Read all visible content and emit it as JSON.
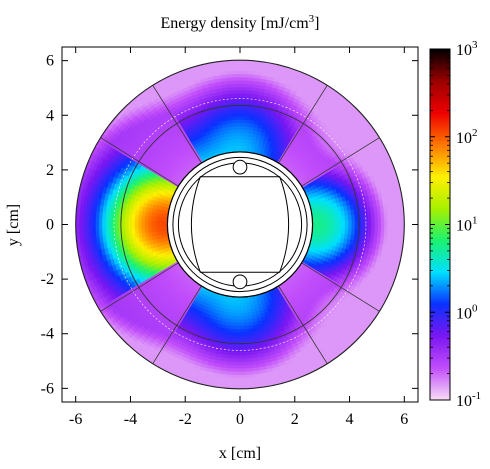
{
  "chart_data": {
    "type": "heatmap",
    "title": "Energy density [mJ/cm",
    "title_sup": "3",
    "title_end": "]",
    "xlabel": "x [cm]",
    "ylabel": "y [cm]",
    "xlim": [
      -6.5,
      6.5
    ],
    "ylim": [
      -6.5,
      6.5
    ],
    "xticks": [
      "-6",
      "-4",
      "-2",
      "0",
      "2",
      "4",
      "6"
    ],
    "yticks": [
      "6",
      "4",
      "2",
      "0",
      "-2",
      "-4",
      "-6"
    ],
    "xtick_values": [
      -6,
      -4,
      -2,
      0,
      2,
      4,
      6
    ],
    "ytick_values": [
      6,
      4,
      2,
      0,
      -2,
      -4,
      -6
    ],
    "colorbar": {
      "scale": "log",
      "range": [
        0.1,
        1000
      ],
      "tick_bases": [
        "10",
        "10",
        "10",
        "10",
        "10"
      ],
      "tick_exponents": [
        "3",
        "2",
        "1",
        "0",
        "-1"
      ],
      "tick_values": [
        1000,
        100,
        10,
        1,
        0.1
      ],
      "colors": [
        "#f7ddf5",
        "#c14dfb",
        "#7a17f2",
        "#0a31ff",
        "#00e0ff",
        "#1df26e",
        "#a8f000",
        "#fff000",
        "#ff7700",
        "#ee0000",
        "#9a0000",
        "#000000"
      ]
    },
    "structure": {
      "aperture_radius": 2.25,
      "collar_inner_radius": 2.65,
      "inner_layer_radius": 4.35,
      "outer_radius": 6.0,
      "peak_position": [
        -3.0,
        0.0
      ],
      "peak_value": 120,
      "min_value": 0.15
    }
  }
}
